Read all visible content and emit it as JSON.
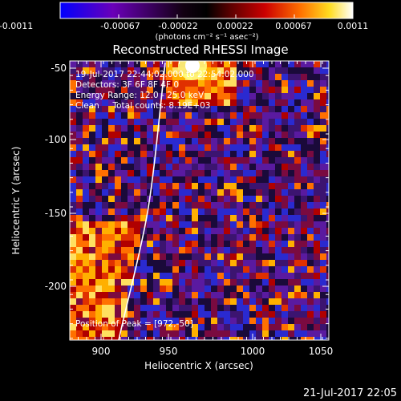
{
  "colorbar": {
    "tick_labels": [
      "-0.0011",
      "-0.00067",
      "-0.00022",
      "0.00022",
      "0.00067",
      "0.0011"
    ],
    "unit_label": "(photons cm⁻² s⁻¹ asec⁻²)",
    "colors": [
      "#0000ff",
      "#6a00b8",
      "#000000",
      "#b00000",
      "#ff6a00",
      "#ffff00",
      "#ffffff"
    ]
  },
  "plot": {
    "title": "Reconstructed RHESSI Image",
    "xlabel": "Heliocentric X (arcsec)",
    "ylabel": "Heliocentric Y (arcsec)",
    "x_ticks": [
      "900",
      "950",
      "1000",
      "1050"
    ],
    "y_ticks": [
      "-50",
      "-100",
      "-150",
      "-200"
    ],
    "info_lines": [
      "19-Jul-2017 22:44:02.000 to 22:54:02.000",
      "Detectors: 3F 6F 8F 4F 0",
      "Energy Range: 12.0 - 25.0 keV",
      "Clean     Total counts: 8.19E+03"
    ],
    "peak_label": "Position of Peak = [972,-50]",
    "limb_color": "#ffffff"
  },
  "footer": {
    "timestamp": "21-Jul-2017 22:05"
  },
  "chart_data": {
    "type": "heatmap",
    "title": "Reconstructed RHESSI Image",
    "xlabel": "Heliocentric X (arcsec)",
    "ylabel": "Heliocentric Y (arcsec)",
    "xlim": [
      871,
      1062
    ],
    "ylim": [
      -241,
      -45
    ],
    "colorbar_range": [
      -0.0011,
      0.0011
    ],
    "peak": [
      972,
      -50
    ]
  }
}
